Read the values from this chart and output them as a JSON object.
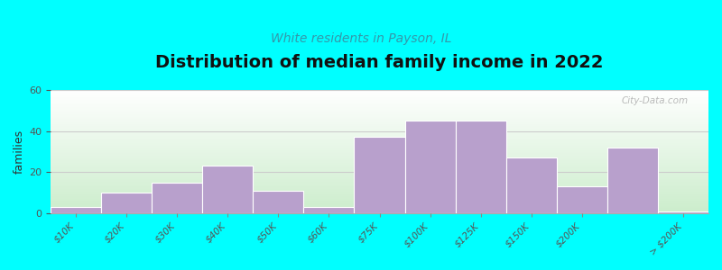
{
  "title": "Distribution of median family income in 2022",
  "subtitle": "White residents in Payson, IL",
  "bar_heights": [
    3,
    10,
    15,
    23,
    11,
    3,
    37,
    45,
    45,
    27,
    13,
    32,
    1
  ],
  "tick_labels": [
    "$10K",
    "$20K",
    "$30K",
    "$40K",
    "$50K",
    "$60K",
    "$75K",
    "$100K",
    "$125K",
    "$150K",
    "$200K",
    "> $200K"
  ],
  "tick_positions": [
    0,
    1,
    2,
    3,
    4,
    5,
    6,
    7,
    8,
    9,
    10,
    12
  ],
  "ylabel": "families",
  "ylim": [
    0,
    60
  ],
  "yticks": [
    0,
    20,
    40,
    60
  ],
  "bar_color": "#b8a0cc",
  "bar_edge_color": "#ffffff",
  "background_outer": "#00ffff",
  "plot_bg_color_top": "#ffffff",
  "plot_bg_color_bottom": "#cceecc",
  "title_fontsize": 14,
  "subtitle_fontsize": 10,
  "subtitle_color": "#3399aa",
  "watermark": "City-Data.com",
  "grid_color": "#cccccc",
  "n_bars": 13,
  "xlim": [
    -0.5,
    12.5
  ]
}
